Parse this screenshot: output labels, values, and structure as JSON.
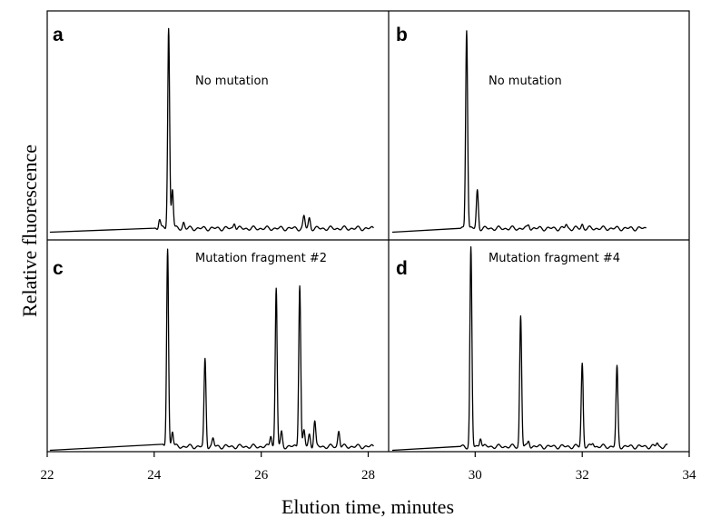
{
  "chart_data": {
    "type": "line",
    "xlabel": "Elution time, minutes",
    "ylabel": "Relative fluorescence",
    "xlim": [
      22,
      34
    ],
    "xticks": [
      "22",
      "24",
      "26",
      "28",
      "30",
      "32",
      "34"
    ],
    "grid": false,
    "panels": [
      {
        "label": "a",
        "annotation": "No mutation",
        "xrange": [
          22,
          28.4
        ],
        "baseline": 0.0,
        "trace_start": 24.0,
        "trace_end": 28.1,
        "peaks": [
          {
            "x": 24.1,
            "height": 0.05
          },
          {
            "x": 24.27,
            "height": 1.0
          },
          {
            "x": 24.34,
            "height": 0.2
          },
          {
            "x": 24.55,
            "height": 0.03
          },
          {
            "x": 25.5,
            "height": 0.03
          },
          {
            "x": 26.8,
            "height": 0.06
          },
          {
            "x": 26.9,
            "height": 0.05
          }
        ]
      },
      {
        "label": "b",
        "annotation": "No mutation",
        "xrange": [
          28.4,
          34
        ],
        "baseline": 0.0,
        "trace_start": 29.7,
        "trace_end": 33.2,
        "peaks": [
          {
            "x": 29.84,
            "height": 1.0
          },
          {
            "x": 30.04,
            "height": 0.19
          },
          {
            "x": 31.0,
            "height": 0.02
          },
          {
            "x": 31.7,
            "height": 0.02
          },
          {
            "x": 32.0,
            "height": 0.02
          }
        ]
      },
      {
        "label": "c",
        "annotation": "Mutation  fragment #2",
        "xrange": [
          22,
          28.4
        ],
        "baseline": 0.0,
        "trace_start": 24.15,
        "trace_end": 28.1,
        "peaks": [
          {
            "x": 24.25,
            "height": 1.0
          },
          {
            "x": 24.34,
            "height": 0.08
          },
          {
            "x": 24.95,
            "height": 0.44
          },
          {
            "x": 25.1,
            "height": 0.04
          },
          {
            "x": 26.18,
            "height": 0.06
          },
          {
            "x": 26.28,
            "height": 0.8
          },
          {
            "x": 26.38,
            "height": 0.07
          },
          {
            "x": 26.72,
            "height": 0.82
          },
          {
            "x": 26.8,
            "height": 0.08
          },
          {
            "x": 26.9,
            "height": 0.06
          },
          {
            "x": 27.0,
            "height": 0.13
          },
          {
            "x": 27.45,
            "height": 0.08
          }
        ]
      },
      {
        "label": "d",
        "annotation": "Mutation fragment #4",
        "xrange": [
          28.4,
          34
        ],
        "baseline": 0.0,
        "trace_start": 29.7,
        "trace_end": 33.6,
        "peaks": [
          {
            "x": 29.92,
            "height": 1.0
          },
          {
            "x": 30.1,
            "height": 0.05
          },
          {
            "x": 30.85,
            "height": 0.66
          },
          {
            "x": 31.0,
            "height": 0.03
          },
          {
            "x": 32.0,
            "height": 0.42
          },
          {
            "x": 32.2,
            "height": 0.02
          },
          {
            "x": 32.65,
            "height": 0.4
          },
          {
            "x": 33.4,
            "height": 0.02
          }
        ]
      }
    ]
  }
}
